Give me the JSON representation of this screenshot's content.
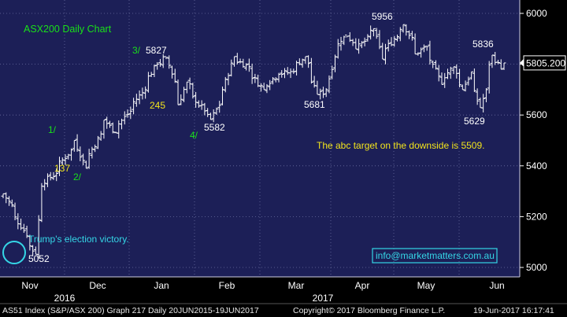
{
  "chart_data": {
    "type": "ohlc",
    "title": "ASX200 Daily Chart",
    "ylim": [
      4980,
      6080
    ],
    "y_ticks": [
      5000,
      5200,
      5400,
      5600,
      5800,
      6000
    ],
    "last_price_label": "5805.200",
    "x_month_labels": [
      "Nov",
      "Dec",
      "Jan",
      "Feb",
      "Mar",
      "Apr",
      "May",
      "Jun"
    ],
    "x_year_labels": [
      "2016",
      "2017"
    ],
    "footer": {
      "left": "AS51 Index (S&P/ASX 200) Graph 217  Daily 20JUN2015-19JUN2017",
      "center": "Copyright© 2017 Bloomberg Finance L.P.",
      "right": "19-Jun-2017 16:17:41"
    },
    "annotations": {
      "price_labels": [
        {
          "text": "5052",
          "value": 5052
        },
        {
          "text": "5827",
          "value": 5827
        },
        {
          "text": "5582",
          "value": 5582
        },
        {
          "text": "5681",
          "value": 5681
        },
        {
          "text": "5956",
          "value": 5956
        },
        {
          "text": "5836",
          "value": 5836
        },
        {
          "text": "5629",
          "value": 5629
        }
      ],
      "wave_labels": [
        {
          "text": "1/",
          "color": "#19e019"
        },
        {
          "text": "2/",
          "color": "#19e019"
        },
        {
          "text": "3/",
          "color": "#19e019"
        },
        {
          "text": "4/",
          "color": "#19e019"
        }
      ],
      "point_counts": [
        {
          "text": "137",
          "color": "#f2e41c"
        },
        {
          "text": "245",
          "color": "#f2e41c"
        }
      ],
      "note_election": "Trump's election victory.",
      "note_target": "The abc target on the downside is 5509.",
      "email": "info@marketmatters.com.au"
    },
    "anchors": [
      {
        "date": "2016-10-25",
        "close": 5290
      },
      {
        "date": "2016-11-09",
        "close": 5052
      },
      {
        "date": "2016-11-11",
        "close": 5320
      },
      {
        "date": "2016-11-18",
        "close": 5370
      },
      {
        "date": "2016-11-28",
        "close": 5500
      },
      {
        "date": "2016-12-02",
        "close": 5390
      },
      {
        "date": "2016-12-12",
        "close": 5580
      },
      {
        "date": "2016-12-16",
        "close": 5530
      },
      {
        "date": "2016-12-30",
        "close": 5700
      },
      {
        "date": "2017-01-05",
        "close": 5800
      },
      {
        "date": "2017-01-10",
        "close": 5827
      },
      {
        "date": "2017-01-16",
        "close": 5640
      },
      {
        "date": "2017-01-19",
        "close": 5730
      },
      {
        "date": "2017-01-24",
        "close": 5650
      },
      {
        "date": "2017-01-31",
        "close": 5582
      },
      {
        "date": "2017-02-06",
        "close": 5700
      },
      {
        "date": "2017-02-10",
        "close": 5830
      },
      {
        "date": "2017-02-17",
        "close": 5790
      },
      {
        "date": "2017-02-24",
        "close": 5700
      },
      {
        "date": "2017-03-03",
        "close": 5760
      },
      {
        "date": "2017-03-10",
        "close": 5770
      },
      {
        "date": "2017-03-16",
        "close": 5830
      },
      {
        "date": "2017-03-22",
        "close": 5681
      },
      {
        "date": "2017-03-27",
        "close": 5700
      },
      {
        "date": "2017-03-31",
        "close": 5880
      },
      {
        "date": "2017-04-05",
        "close": 5910
      },
      {
        "date": "2017-04-10",
        "close": 5860
      },
      {
        "date": "2017-04-18",
        "close": 5940
      },
      {
        "date": "2017-04-21",
        "close": 5820
      },
      {
        "date": "2017-04-27",
        "close": 5900
      },
      {
        "date": "2017-05-02",
        "close": 5956
      },
      {
        "date": "2017-05-08",
        "close": 5840
      },
      {
        "date": "2017-05-12",
        "close": 5870
      },
      {
        "date": "2017-05-16",
        "close": 5800
      },
      {
        "date": "2017-05-19",
        "close": 5720
      },
      {
        "date": "2017-05-25",
        "close": 5790
      },
      {
        "date": "2017-05-30",
        "close": 5700
      },
      {
        "date": "2017-06-02",
        "close": 5770
      },
      {
        "date": "2017-06-07",
        "close": 5629
      },
      {
        "date": "2017-06-09",
        "close": 5700
      },
      {
        "date": "2017-06-13",
        "close": 5836
      },
      {
        "date": "2017-06-16",
        "close": 5780
      },
      {
        "date": "2017-06-19",
        "close": 5805
      }
    ]
  },
  "colors": {
    "background": "#000000",
    "plot_background": "#1c1f57",
    "grid": "#6a6ea0",
    "candle": "#ffffff",
    "title": "#19e019",
    "wave": "#19e019",
    "count": "#f2e41c",
    "note_target": "#f2e41c",
    "note_election": "#35d6e6",
    "circle": "#35d6e6",
    "email_text": "#35d6e6",
    "email_border": "#35d6e6",
    "axis_text": "#ffffff",
    "footer_text": "#e8e8e8"
  }
}
